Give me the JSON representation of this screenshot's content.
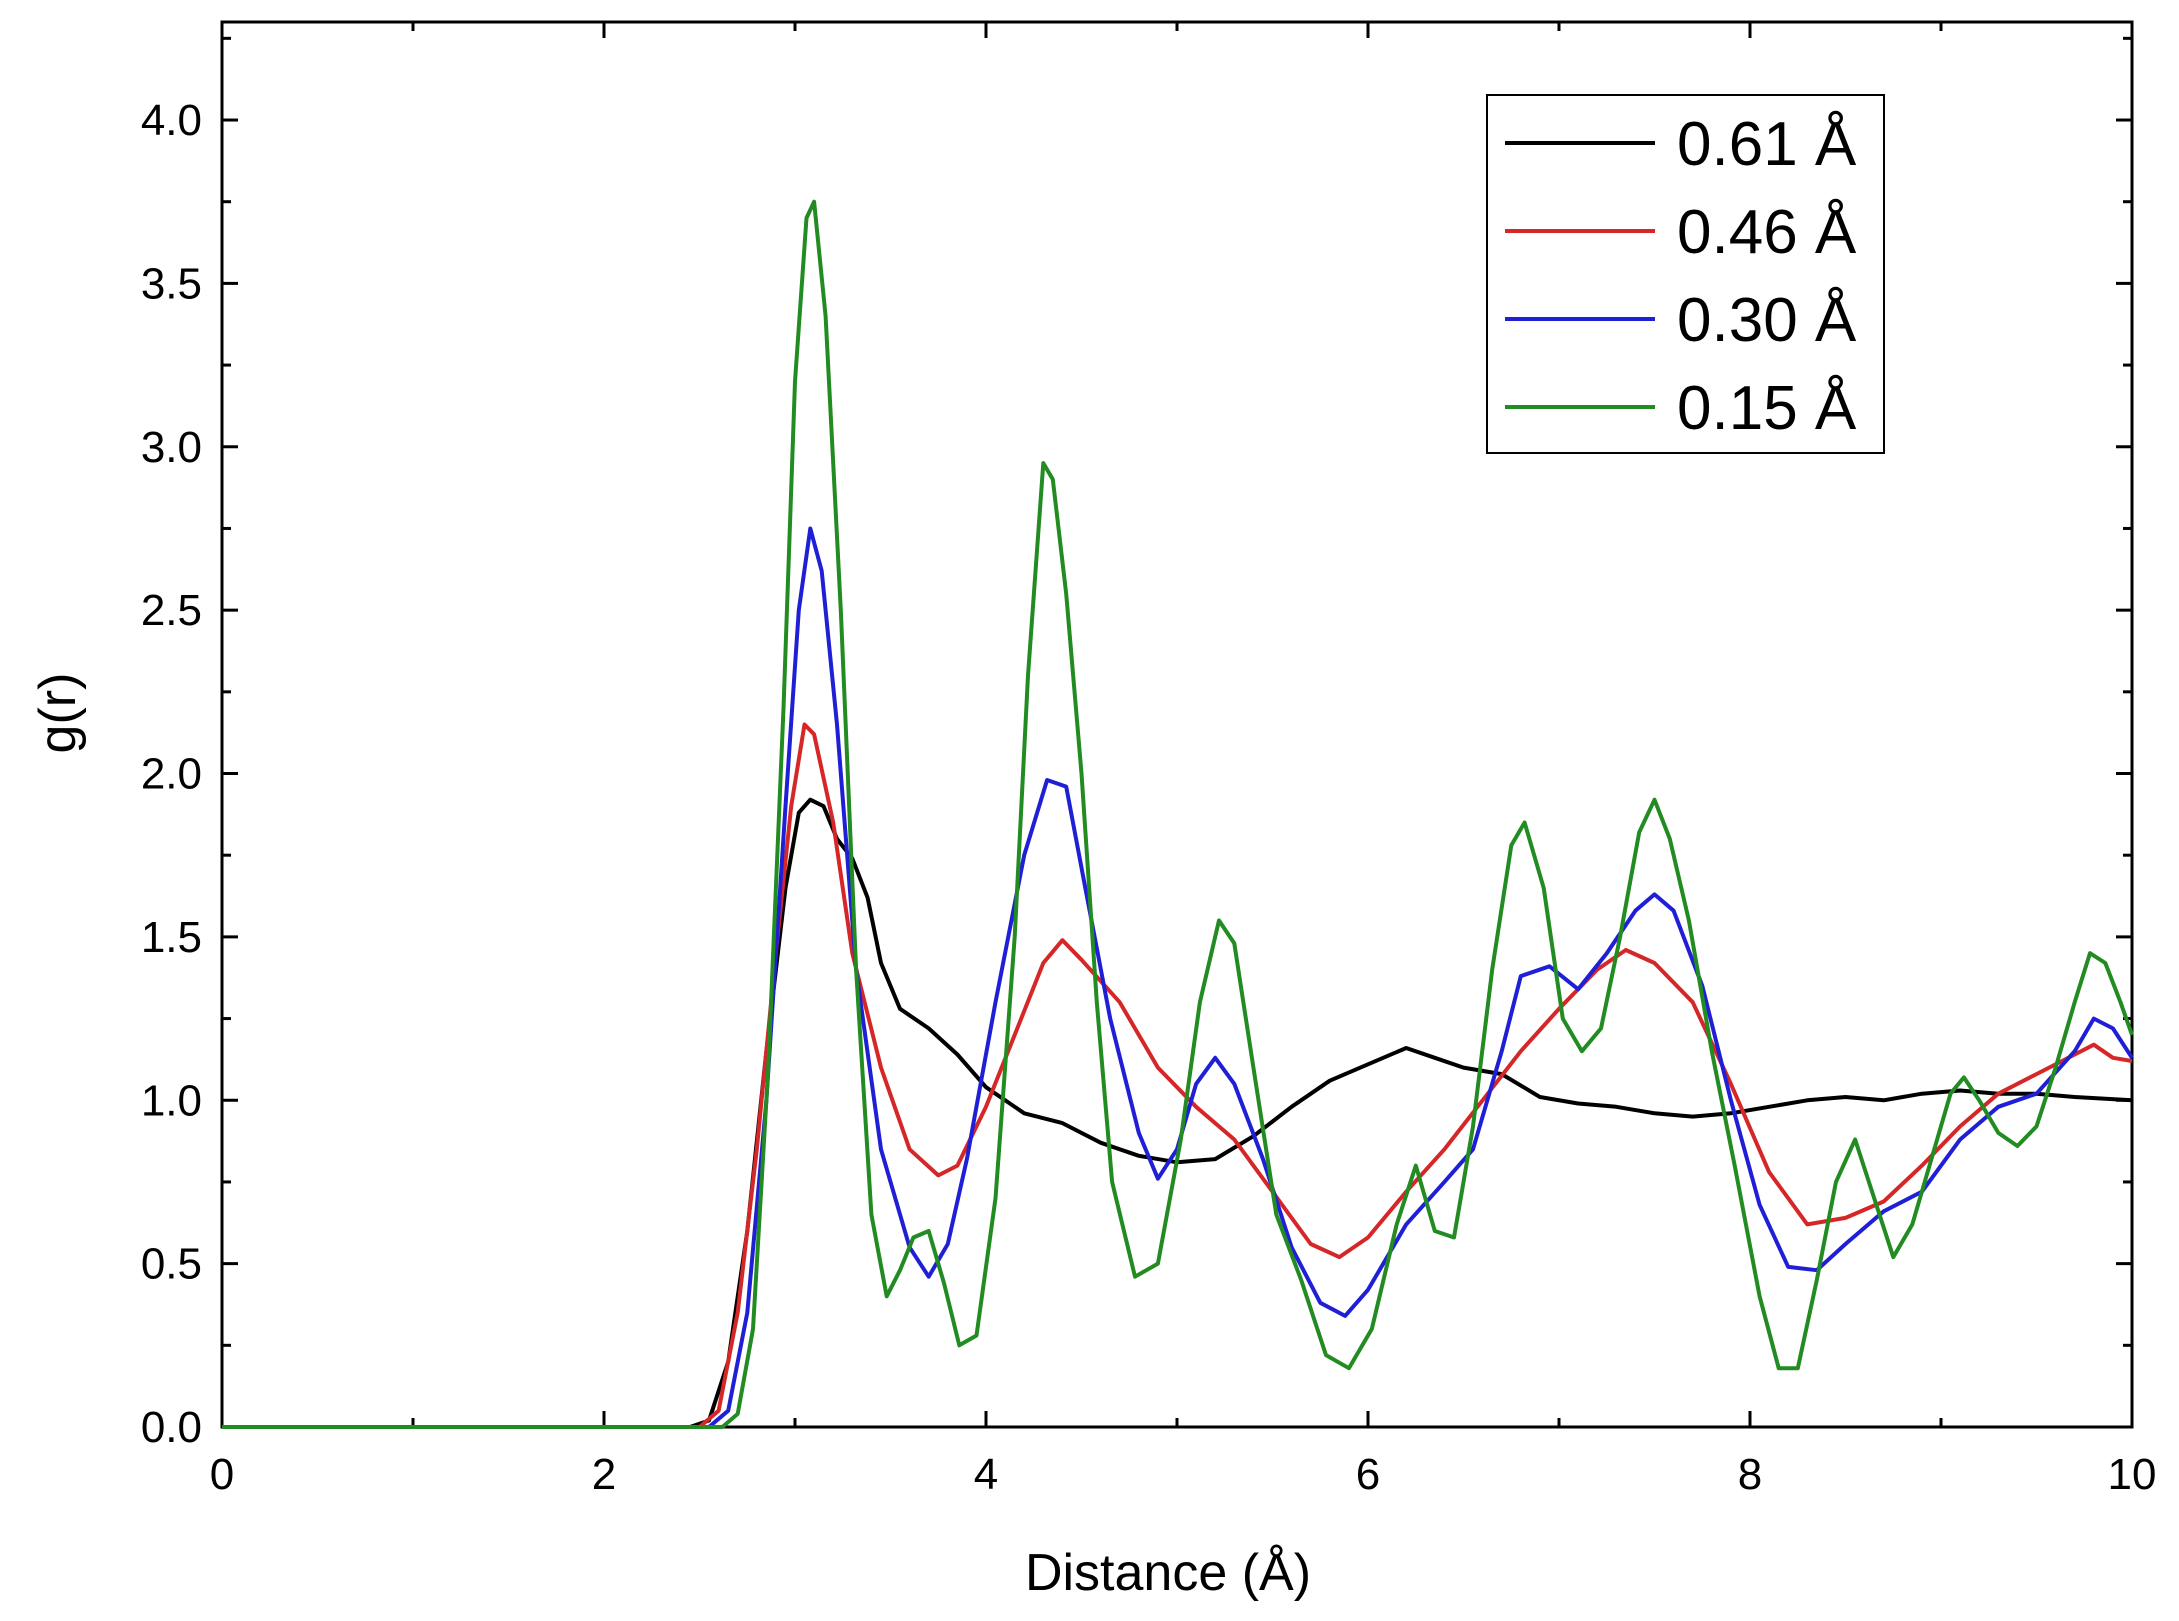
{
  "chart_data": {
    "type": "line",
    "title": "",
    "xlabel": "Distance (Å)",
    "ylabel": "g(r)",
    "xlim": [
      0,
      10
    ],
    "ylim": [
      0,
      4.3
    ],
    "x_ticks": [
      "0",
      "2",
      "4",
      "6",
      "8",
      "10"
    ],
    "y_ticks": [
      "0.0",
      "0.5",
      "1.0",
      "1.5",
      "2.0",
      "2.5",
      "3.0",
      "3.5",
      "4.0"
    ],
    "grid": false,
    "legend": "top-right",
    "series": [
      {
        "name": "0.61 Å",
        "color": "#000000",
        "points": [
          [
            0,
            0
          ],
          [
            2.45,
            0
          ],
          [
            2.55,
            0.02
          ],
          [
            2.65,
            0.2
          ],
          [
            2.75,
            0.6
          ],
          [
            2.85,
            1.15
          ],
          [
            2.95,
            1.65
          ],
          [
            3.02,
            1.88
          ],
          [
            3.08,
            1.92
          ],
          [
            3.15,
            1.9
          ],
          [
            3.22,
            1.8
          ],
          [
            3.3,
            1.74
          ],
          [
            3.38,
            1.62
          ],
          [
            3.45,
            1.42
          ],
          [
            3.55,
            1.28
          ],
          [
            3.7,
            1.22
          ],
          [
            3.85,
            1.14
          ],
          [
            4.0,
            1.04
          ],
          [
            4.2,
            0.96
          ],
          [
            4.4,
            0.93
          ],
          [
            4.6,
            0.87
          ],
          [
            4.8,
            0.83
          ],
          [
            5.0,
            0.81
          ],
          [
            5.2,
            0.82
          ],
          [
            5.4,
            0.89
          ],
          [
            5.6,
            0.98
          ],
          [
            5.8,
            1.06
          ],
          [
            6.0,
            1.11
          ],
          [
            6.2,
            1.16
          ],
          [
            6.35,
            1.13
          ],
          [
            6.5,
            1.1
          ],
          [
            6.7,
            1.08
          ],
          [
            6.9,
            1.01
          ],
          [
            7.1,
            0.99
          ],
          [
            7.3,
            0.98
          ],
          [
            7.5,
            0.96
          ],
          [
            7.7,
            0.95
          ],
          [
            7.9,
            0.96
          ],
          [
            8.1,
            0.98
          ],
          [
            8.3,
            1.0
          ],
          [
            8.5,
            1.01
          ],
          [
            8.7,
            1.0
          ],
          [
            8.9,
            1.02
          ],
          [
            9.1,
            1.03
          ],
          [
            9.3,
            1.02
          ],
          [
            9.5,
            1.02
          ],
          [
            9.7,
            1.01
          ],
          [
            10.0,
            1.0
          ]
        ]
      },
      {
        "name": "0.46 Å",
        "color": "#d62728",
        "points": [
          [
            0,
            0
          ],
          [
            2.5,
            0
          ],
          [
            2.6,
            0.05
          ],
          [
            2.7,
            0.35
          ],
          [
            2.8,
            0.85
          ],
          [
            2.9,
            1.45
          ],
          [
            2.98,
            1.9
          ],
          [
            3.05,
            2.15
          ],
          [
            3.1,
            2.12
          ],
          [
            3.2,
            1.85
          ],
          [
            3.3,
            1.45
          ],
          [
            3.45,
            1.1
          ],
          [
            3.6,
            0.85
          ],
          [
            3.75,
            0.77
          ],
          [
            3.85,
            0.8
          ],
          [
            4.0,
            0.98
          ],
          [
            4.15,
            1.2
          ],
          [
            4.3,
            1.42
          ],
          [
            4.4,
            1.49
          ],
          [
            4.5,
            1.43
          ],
          [
            4.7,
            1.3
          ],
          [
            4.9,
            1.1
          ],
          [
            5.1,
            0.98
          ],
          [
            5.3,
            0.88
          ],
          [
            5.5,
            0.72
          ],
          [
            5.7,
            0.56
          ],
          [
            5.85,
            0.52
          ],
          [
            6.0,
            0.58
          ],
          [
            6.2,
            0.72
          ],
          [
            6.4,
            0.85
          ],
          [
            6.6,
            1.0
          ],
          [
            6.8,
            1.15
          ],
          [
            7.0,
            1.28
          ],
          [
            7.2,
            1.4
          ],
          [
            7.35,
            1.46
          ],
          [
            7.5,
            1.42
          ],
          [
            7.7,
            1.3
          ],
          [
            7.9,
            1.05
          ],
          [
            8.1,
            0.78
          ],
          [
            8.3,
            0.62
          ],
          [
            8.5,
            0.64
          ],
          [
            8.7,
            0.69
          ],
          [
            8.9,
            0.8
          ],
          [
            9.1,
            0.92
          ],
          [
            9.3,
            1.02
          ],
          [
            9.5,
            1.08
          ],
          [
            9.7,
            1.14
          ],
          [
            9.8,
            1.17
          ],
          [
            9.9,
            1.13
          ],
          [
            10.0,
            1.12
          ]
        ]
      },
      {
        "name": "0.30 Å",
        "color": "#1f1fd6",
        "points": [
          [
            0,
            0
          ],
          [
            2.55,
            0
          ],
          [
            2.65,
            0.05
          ],
          [
            2.75,
            0.35
          ],
          [
            2.85,
            1.0
          ],
          [
            2.95,
            1.9
          ],
          [
            3.02,
            2.5
          ],
          [
            3.08,
            2.75
          ],
          [
            3.14,
            2.62
          ],
          [
            3.22,
            2.15
          ],
          [
            3.32,
            1.4
          ],
          [
            3.45,
            0.85
          ],
          [
            3.6,
            0.55
          ],
          [
            3.7,
            0.46
          ],
          [
            3.8,
            0.56
          ],
          [
            3.9,
            0.82
          ],
          [
            4.05,
            1.3
          ],
          [
            4.2,
            1.75
          ],
          [
            4.32,
            1.98
          ],
          [
            4.42,
            1.96
          ],
          [
            4.52,
            1.65
          ],
          [
            4.65,
            1.25
          ],
          [
            4.8,
            0.9
          ],
          [
            4.9,
            0.76
          ],
          [
            5.0,
            0.85
          ],
          [
            5.1,
            1.05
          ],
          [
            5.2,
            1.13
          ],
          [
            5.3,
            1.05
          ],
          [
            5.45,
            0.82
          ],
          [
            5.6,
            0.55
          ],
          [
            5.75,
            0.38
          ],
          [
            5.88,
            0.34
          ],
          [
            6.0,
            0.42
          ],
          [
            6.2,
            0.62
          ],
          [
            6.4,
            0.75
          ],
          [
            6.55,
            0.85
          ],
          [
            6.7,
            1.15
          ],
          [
            6.8,
            1.38
          ],
          [
            6.95,
            1.41
          ],
          [
            7.1,
            1.34
          ],
          [
            7.25,
            1.45
          ],
          [
            7.4,
            1.58
          ],
          [
            7.5,
            1.63
          ],
          [
            7.6,
            1.58
          ],
          [
            7.75,
            1.35
          ],
          [
            7.9,
            1.0
          ],
          [
            8.05,
            0.68
          ],
          [
            8.2,
            0.49
          ],
          [
            8.35,
            0.48
          ],
          [
            8.5,
            0.56
          ],
          [
            8.7,
            0.66
          ],
          [
            8.9,
            0.72
          ],
          [
            9.1,
            0.88
          ],
          [
            9.3,
            0.98
          ],
          [
            9.5,
            1.02
          ],
          [
            9.7,
            1.15
          ],
          [
            9.8,
            1.25
          ],
          [
            9.9,
            1.22
          ],
          [
            10.0,
            1.13
          ]
        ]
      },
      {
        "name": "0.15 Å",
        "color": "#228b22",
        "points": [
          [
            0,
            0
          ],
          [
            2.62,
            0
          ],
          [
            2.7,
            0.04
          ],
          [
            2.78,
            0.3
          ],
          [
            2.86,
            1.1
          ],
          [
            2.94,
            2.2
          ],
          [
            3.0,
            3.2
          ],
          [
            3.06,
            3.7
          ],
          [
            3.1,
            3.75
          ],
          [
            3.16,
            3.4
          ],
          [
            3.24,
            2.5
          ],
          [
            3.32,
            1.4
          ],
          [
            3.4,
            0.65
          ],
          [
            3.48,
            0.4
          ],
          [
            3.55,
            0.48
          ],
          [
            3.62,
            0.58
          ],
          [
            3.7,
            0.6
          ],
          [
            3.78,
            0.44
          ],
          [
            3.86,
            0.25
          ],
          [
            3.95,
            0.28
          ],
          [
            4.05,
            0.7
          ],
          [
            4.15,
            1.5
          ],
          [
            4.22,
            2.3
          ],
          [
            4.3,
            2.95
          ],
          [
            4.35,
            2.9
          ],
          [
            4.42,
            2.55
          ],
          [
            4.5,
            2.0
          ],
          [
            4.58,
            1.3
          ],
          [
            4.66,
            0.75
          ],
          [
            4.78,
            0.46
          ],
          [
            4.9,
            0.5
          ],
          [
            5.02,
            0.88
          ],
          [
            5.12,
            1.3
          ],
          [
            5.22,
            1.55
          ],
          [
            5.3,
            1.48
          ],
          [
            5.4,
            1.1
          ],
          [
            5.52,
            0.65
          ],
          [
            5.65,
            0.45
          ],
          [
            5.78,
            0.22
          ],
          [
            5.9,
            0.18
          ],
          [
            6.02,
            0.3
          ],
          [
            6.15,
            0.62
          ],
          [
            6.25,
            0.8
          ],
          [
            6.35,
            0.6
          ],
          [
            6.45,
            0.58
          ],
          [
            6.55,
            0.92
          ],
          [
            6.65,
            1.4
          ],
          [
            6.75,
            1.78
          ],
          [
            6.82,
            1.85
          ],
          [
            6.92,
            1.65
          ],
          [
            7.02,
            1.25
          ],
          [
            7.12,
            1.15
          ],
          [
            7.22,
            1.22
          ],
          [
            7.32,
            1.5
          ],
          [
            7.42,
            1.82
          ],
          [
            7.5,
            1.92
          ],
          [
            7.58,
            1.8
          ],
          [
            7.68,
            1.55
          ],
          [
            7.8,
            1.15
          ],
          [
            7.92,
            0.8
          ],
          [
            8.05,
            0.4
          ],
          [
            8.15,
            0.18
          ],
          [
            8.25,
            0.18
          ],
          [
            8.35,
            0.45
          ],
          [
            8.45,
            0.75
          ],
          [
            8.55,
            0.88
          ],
          [
            8.65,
            0.7
          ],
          [
            8.75,
            0.52
          ],
          [
            8.85,
            0.62
          ],
          [
            8.95,
            0.82
          ],
          [
            9.05,
            1.02
          ],
          [
            9.12,
            1.07
          ],
          [
            9.2,
            1.0
          ],
          [
            9.3,
            0.9
          ],
          [
            9.4,
            0.86
          ],
          [
            9.5,
            0.92
          ],
          [
            9.6,
            1.1
          ],
          [
            9.7,
            1.3
          ],
          [
            9.78,
            1.45
          ],
          [
            9.86,
            1.42
          ],
          [
            9.94,
            1.3
          ],
          [
            10.0,
            1.2
          ]
        ]
      }
    ]
  }
}
